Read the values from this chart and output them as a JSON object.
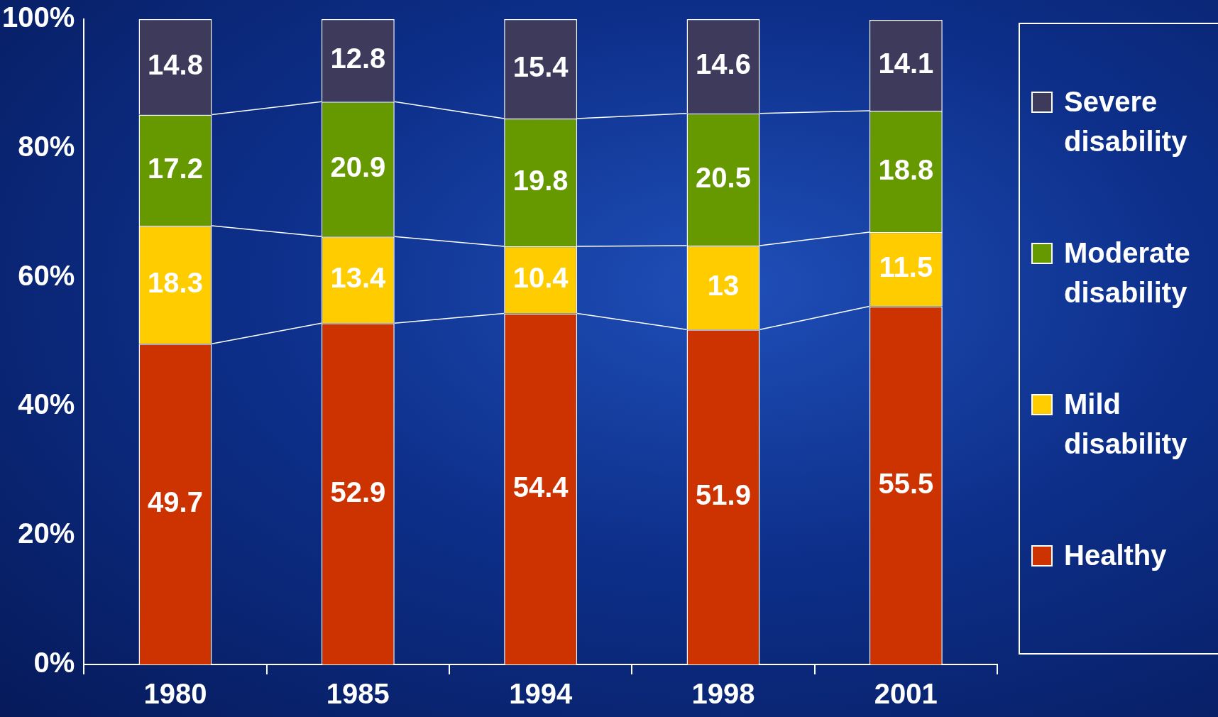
{
  "chart_data": {
    "type": "bar",
    "stacked": true,
    "categories": [
      "1980",
      "1985",
      "1994",
      "1998",
      "2001"
    ],
    "series": [
      {
        "name": "Healthy",
        "color": "#cc3300",
        "values": [
          49.7,
          52.9,
          54.4,
          51.9,
          55.5
        ]
      },
      {
        "name": "Mild disability",
        "color": "#ffcc00",
        "values": [
          18.3,
          13.4,
          10.4,
          13,
          11.5
        ]
      },
      {
        "name": "Moderate disability",
        "color": "#669900",
        "values": [
          17.2,
          20.9,
          19.8,
          20.5,
          18.8
        ]
      },
      {
        "name": "Severe disability",
        "color": "#3d3a5c",
        "values": [
          14.8,
          12.8,
          15.4,
          14.6,
          14.1
        ]
      }
    ],
    "ylim": [
      0,
      100
    ],
    "yticks": [
      {
        "value": 0,
        "label": "0%"
      },
      {
        "value": 20,
        "label": "20%"
      },
      {
        "value": 40,
        "label": "40%"
      },
      {
        "value": 60,
        "label": "60%"
      },
      {
        "value": 80,
        "label": "80%"
      },
      {
        "value": 100,
        "label": "100%"
      }
    ],
    "data_labels": true,
    "grid": false,
    "legend": "right"
  }
}
